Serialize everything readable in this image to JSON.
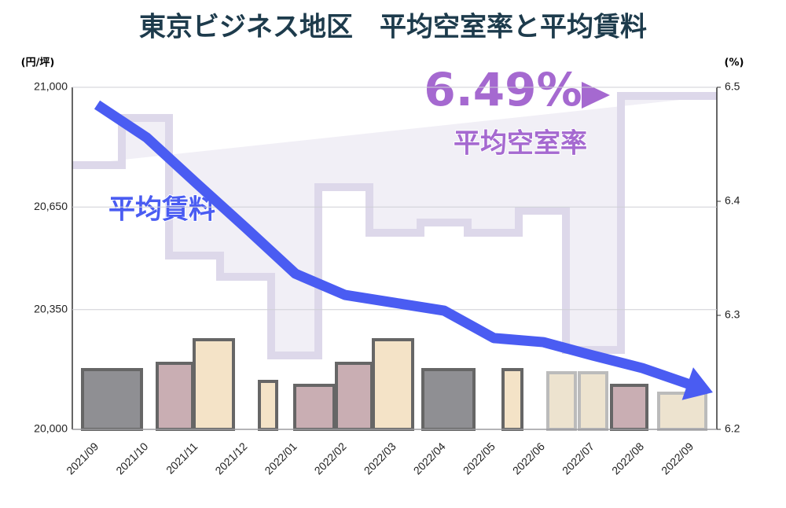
{
  "chart_data": {
    "type": "line",
    "title": "東京ビジネス地区　平均空室率と平均賃料",
    "y_unit": "(円/坪)",
    "y2_unit": "(%)",
    "annotations": {
      "vacancy_value": "6.49%",
      "vacancy_label": "平均空室率",
      "rent_label": "平均賃料"
    },
    "categories": [
      "2021/09",
      "2021/10",
      "2021/11",
      "2021/12",
      "2022/01",
      "2022/02",
      "2022/03",
      "2022/04",
      "2022/05",
      "2022/06",
      "2022/07",
      "2022/08",
      "2022/09"
    ],
    "series": [
      {
        "name": "平均賃料",
        "color": "#4a5cf2",
        "values": [
          20949,
          20853,
          20720,
          20589,
          20455,
          20393,
          20370,
          20347,
          20267,
          20255,
          20216,
          20179,
          20129
        ]
      }
    ],
    "ylim": [
      20000,
      21000
    ],
    "yticks": [
      {
        "value": 20000,
        "label": "20,000"
      },
      {
        "value": 20350,
        "label": "20,350"
      },
      {
        "value": 20650,
        "label": "20,650"
      },
      {
        "value": 21000,
        "label": "21,000"
      }
    ],
    "y2lim": [
      6.2,
      6.5
    ],
    "y2ticks": [
      6.2,
      6.3,
      6.4,
      6.5
    ],
    "grid": true
  }
}
